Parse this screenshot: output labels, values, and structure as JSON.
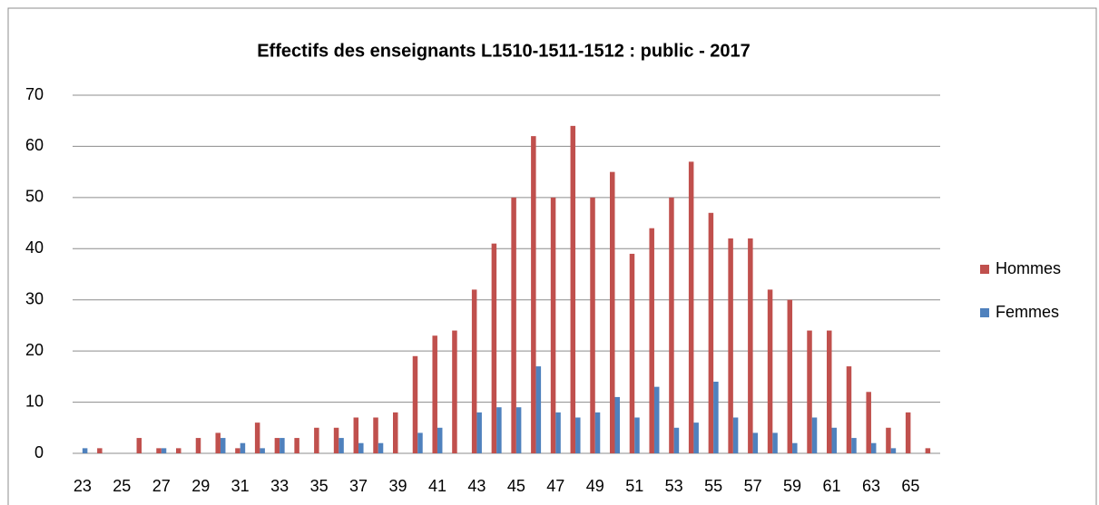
{
  "chart_data": {
    "type": "bar",
    "title": "Effectifs des enseignants L1510-1511-1512 : public - 2017",
    "categories": [
      "23",
      null,
      "25",
      null,
      "27",
      null,
      "29",
      null,
      "31",
      null,
      "33",
      null,
      "35",
      null,
      "37",
      null,
      "39",
      null,
      "41",
      null,
      "43",
      null,
      "45",
      null,
      "47",
      null,
      "49",
      null,
      "51",
      null,
      "53",
      null,
      "55",
      null,
      "57",
      null,
      "59",
      null,
      "61",
      null,
      "63",
      null,
      "65",
      null
    ],
    "series": [
      {
        "name": "Hommes",
        "color": "#c0504d",
        "values": [
          0,
          1,
          0,
          3,
          1,
          1,
          3,
          4,
          1,
          6,
          3,
          3,
          5,
          5,
          7,
          7,
          8,
          19,
          23,
          24,
          32,
          41,
          50,
          62,
          50,
          64,
          50,
          55,
          39,
          44,
          50,
          57,
          47,
          42,
          42,
          32,
          30,
          24,
          24,
          17,
          12,
          5,
          8,
          1
        ]
      },
      {
        "name": "Femmes",
        "color": "#4f81bd",
        "values": [
          1,
          0,
          0,
          0,
          1,
          0,
          0,
          3,
          2,
          1,
          3,
          0,
          0,
          3,
          2,
          2,
          0,
          4,
          5,
          0,
          8,
          9,
          9,
          17,
          8,
          7,
          8,
          11,
          7,
          13,
          5,
          6,
          14,
          7,
          4,
          4,
          2,
          7,
          5,
          3,
          2,
          1,
          0,
          0
        ]
      }
    ],
    "ylim": [
      0,
      70
    ],
    "yticks": [
      0,
      10,
      20,
      30,
      40,
      50,
      60,
      70
    ],
    "grid": true,
    "legend": "right"
  }
}
